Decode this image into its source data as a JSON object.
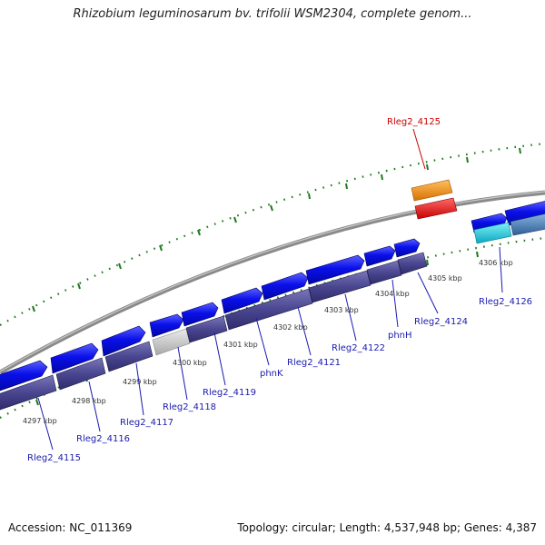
{
  "title": "Rhizobium leguminosarum bv. trifolii WSM2304, complete genom...",
  "footer": {
    "accession": "Accession: NC_011369",
    "topology": "Topology: circular; Length: 4,537,948 bp; Genes: 4,387"
  },
  "colors": {
    "forward_gene": "#0a10e8",
    "reverse_gene": "#4a4690",
    "hypothetical": "#c8c8c8",
    "highlight_gene": "#ee1111",
    "orange_feature": "#f08c00",
    "cyan_feature": "#10c8d8",
    "teal_feature": "#4a86b8",
    "label": "#1a1ab0",
    "highlight_label": "#cc0000",
    "tick": "#1e7a1e",
    "backbone": "#7a7a7a"
  },
  "kbp_ticks": [
    "4297 kbp",
    "4298 kbp",
    "4299 kbp",
    "4300 kbp",
    "4301 kbp",
    "4302 kbp",
    "4303 kbp",
    "4304 kbp",
    "4305 kbp",
    "4306 kbp"
  ],
  "gene_labels": [
    {
      "name": "Rleg2_4115",
      "highlight": false
    },
    {
      "name": "Rleg2_4116",
      "highlight": false
    },
    {
      "name": "Rleg2_4117",
      "highlight": false
    },
    {
      "name": "Rleg2_4118",
      "highlight": false
    },
    {
      "name": "Rleg2_4119",
      "highlight": false
    },
    {
      "name": "phnK",
      "highlight": false
    },
    {
      "name": "Rleg2_4121",
      "highlight": false
    },
    {
      "name": "Rleg2_4122",
      "highlight": false
    },
    {
      "name": "phnH",
      "highlight": false
    },
    {
      "name": "Rleg2_4124",
      "highlight": false
    },
    {
      "name": "Rleg2_4125",
      "highlight": true
    },
    {
      "name": "Rleg2_4126",
      "highlight": false
    }
  ]
}
